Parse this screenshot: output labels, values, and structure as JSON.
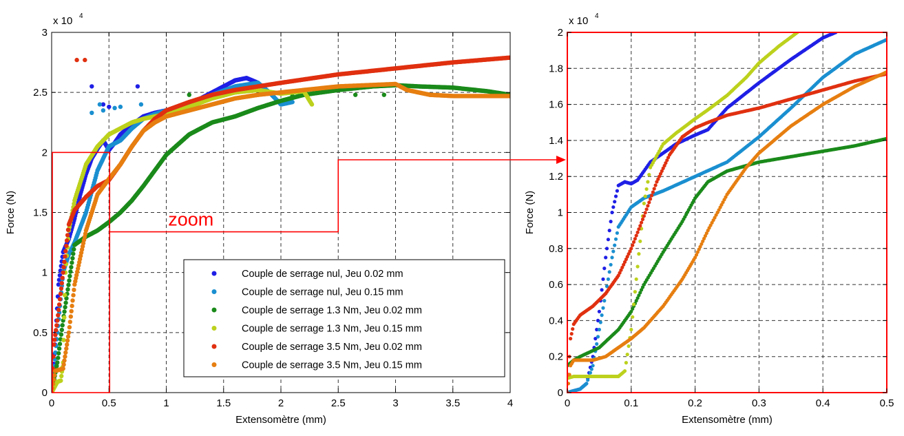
{
  "chart_data": [
    {
      "type": "scatter",
      "xlabel": "Extensomètre (mm)",
      "ylabel": "Force (N)",
      "y_multiplier": "x 10",
      "y_multiplier_exp": "4",
      "xlim": [
        0,
        4
      ],
      "ylim": [
        0,
        30000
      ],
      "xticks": [
        "0",
        "0.5",
        "1",
        "1.5",
        "2",
        "2.5",
        "3",
        "3.5",
        "4"
      ],
      "yticks": [
        "0",
        "0.5",
        "1",
        "1.5",
        "2",
        "2.5",
        "3"
      ],
      "grid": true,
      "legend_position": "bottom-right",
      "annotation": "zoom",
      "series": [
        {
          "name": "Couple de serrage nul, Jeu 0.02 mm",
          "color": "#1f1fe6",
          "x": [
            0,
            0.03,
            0.06,
            0.1,
            0.15,
            0.2,
            0.25,
            0.3,
            0.35,
            0.4,
            0.45,
            0.5,
            0.55,
            0.6,
            0.7,
            0.8,
            0.9,
            1.0,
            1.1,
            1.2,
            1.3,
            1.4,
            1.5,
            1.6,
            1.7,
            1.8
          ],
          "y": [
            0,
            4000,
            9000,
            11700,
            12800,
            14500,
            16500,
            18200,
            19500,
            20300,
            21000,
            20200,
            20800,
            21500,
            22300,
            23000,
            23300,
            23500,
            23700,
            24000,
            24500,
            25000,
            25500,
            26000,
            26200,
            25800
          ],
          "outliers_x": [
            0.35,
            0.45,
            0.5,
            0.75
          ],
          "outliers_y": [
            25500,
            24000,
            23800,
            25500
          ]
        },
        {
          "name": "Couple de serrage nul, Jeu 0.15 mm",
          "color": "#1a8fd0",
          "x": [
            0,
            0.05,
            0.1,
            0.15,
            0.2,
            0.3,
            0.4,
            0.5,
            0.6,
            0.7,
            0.8,
            0.9,
            1.0,
            1.2,
            1.4,
            1.6,
            1.8,
            1.9,
            2.0,
            2.1
          ],
          "y": [
            0,
            5000,
            10000,
            11500,
            12500,
            15000,
            18500,
            20500,
            21000,
            22000,
            22800,
            23200,
            23500,
            24000,
            24800,
            25500,
            25800,
            25000,
            24000,
            24200
          ],
          "outliers_x": [
            0.35,
            0.42,
            0.45,
            0.55,
            0.6,
            0.78
          ],
          "outliers_y": [
            23300,
            24000,
            23500,
            23700,
            23800,
            24000
          ]
        },
        {
          "name": "Couple de serrage 1.3 Nm, Jeu 0.02 mm",
          "color": "#1a8a1a",
          "x": [
            0,
            0.05,
            0.1,
            0.2,
            0.3,
            0.4,
            0.5,
            0.6,
            0.7,
            0.8,
            0.9,
            1.0,
            1.2,
            1.4,
            1.6,
            1.8,
            2.0,
            2.2,
            2.5,
            2.8,
            3.0,
            3.2,
            3.5,
            3.8,
            4.0
          ],
          "y": [
            0,
            2500,
            6000,
            12300,
            13000,
            13500,
            14200,
            15000,
            16000,
            17200,
            18500,
            19800,
            21500,
            22500,
            23000,
            23700,
            24300,
            24800,
            25200,
            25500,
            25600,
            25500,
            25400,
            25100,
            24800
          ],
          "outliers_x": [
            1.2,
            2.1,
            2.65,
            2.9
          ],
          "outliers_y": [
            24800,
            24700,
            24800,
            24800
          ]
        },
        {
          "name": "Couple de serrage 1.3 Nm, Jeu 0.15 mm",
          "color": "#bcd11c",
          "x": [
            0,
            0.05,
            0.08,
            0.1,
            0.12,
            0.15,
            0.2,
            0.3,
            0.4,
            0.5,
            0.6,
            0.7,
            0.8,
            0.9,
            1.0,
            1.2,
            1.4,
            1.6,
            1.8,
            2.0,
            2.2,
            2.27
          ],
          "y": [
            0,
            900,
            1000,
            2500,
            10000,
            13500,
            16000,
            19000,
            20500,
            21500,
            22000,
            22500,
            22800,
            23000,
            23200,
            23800,
            24500,
            25000,
            25200,
            24900,
            25100,
            24000
          ],
          "outliers_x": [],
          "outliers_y": []
        },
        {
          "name": "Couple de serrage 3.5 Nm, Jeu 0.02 mm",
          "color": "#e03010",
          "x": [
            0,
            0.02,
            0.05,
            0.1,
            0.15,
            0.2,
            0.3,
            0.4,
            0.5,
            0.6,
            0.7,
            0.8,
            0.9,
            1.0,
            1.2,
            1.4,
            1.6,
            1.8,
            2.0,
            2.5,
            3.0,
            3.5,
            4.0
          ],
          "y": [
            0,
            4000,
            6000,
            10000,
            14000,
            15200,
            16300,
            17200,
            17700,
            19000,
            20500,
            21800,
            22800,
            23500,
            24200,
            24800,
            25200,
            25500,
            25800,
            26500,
            27000,
            27500,
            27900
          ],
          "outliers_x": [
            0.22,
            0.29
          ],
          "outliers_y": [
            27700,
            27700
          ]
        },
        {
          "name": "Couple de serrage 3.5 Nm, Jeu 0.15 mm",
          "color": "#e67e10",
          "x": [
            0,
            0.03,
            0.1,
            0.15,
            0.2,
            0.3,
            0.4,
            0.5,
            0.6,
            0.7,
            0.8,
            0.9,
            1.0,
            1.2,
            1.4,
            1.6,
            1.8,
            2.0,
            2.5,
            3.0,
            3.1,
            3.3,
            3.5,
            4.0
          ],
          "y": [
            0,
            1800,
            2000,
            5000,
            9000,
            13500,
            16500,
            17800,
            19000,
            20500,
            21800,
            22500,
            23000,
            23500,
            24000,
            24500,
            24800,
            25000,
            25500,
            25700,
            25200,
            24800,
            24700,
            24700
          ],
          "outliers_x": [],
          "outliers_y": []
        }
      ]
    },
    {
      "type": "scatter",
      "xlabel": "Extensomètre (mm)",
      "ylabel": "Force (N)",
      "y_multiplier": "x 10",
      "y_multiplier_exp": "4",
      "xlim": [
        0,
        0.5
      ],
      "ylim": [
        0,
        20000
      ],
      "xticks": [
        "0",
        "0.1",
        "0.2",
        "0.3",
        "0.4",
        "0.5"
      ],
      "yticks": [
        "0",
        "0.2",
        "0.4",
        "0.6",
        "0.8",
        "1",
        "1.2",
        "1.4",
        "1.6",
        "1.8",
        "2"
      ],
      "grid": true,
      "series": [
        {
          "name": "Couple de serrage nul, Jeu 0.02 mm",
          "color": "#1f1fe6",
          "x": [
            0,
            0.02,
            0.03,
            0.04,
            0.05,
            0.06,
            0.07,
            0.08,
            0.09,
            0.1,
            0.11,
            0.12,
            0.13,
            0.15,
            0.17,
            0.2,
            0.22,
            0.25,
            0.3,
            0.35,
            0.4,
            0.42
          ],
          "y": [
            0,
            200,
            500,
            2000,
            4500,
            7500,
            10000,
            11500,
            11700,
            11600,
            11800,
            12300,
            12800,
            13300,
            13800,
            14300,
            14600,
            15800,
            17200,
            18500,
            19700,
            20000
          ]
        },
        {
          "name": "Couple de serrage nul, Jeu 0.15 mm",
          "color": "#1a8fd0",
          "x": [
            0,
            0.02,
            0.03,
            0.04,
            0.05,
            0.06,
            0.07,
            0.08,
            0.1,
            0.12,
            0.15,
            0.2,
            0.25,
            0.3,
            0.35,
            0.4,
            0.45,
            0.5
          ],
          "y": [
            0,
            200,
            500,
            1500,
            3500,
            5500,
            7500,
            9200,
            10300,
            10800,
            11200,
            12000,
            12800,
            14200,
            15800,
            17500,
            18800,
            19600
          ]
        },
        {
          "name": "Couple de serrage 1.3 Nm, Jeu 0.02 mm",
          "color": "#1a8a1a",
          "x": [
            0,
            0.01,
            0.02,
            0.05,
            0.08,
            0.1,
            0.12,
            0.15,
            0.18,
            0.2,
            0.22,
            0.25,
            0.3,
            0.35,
            0.4,
            0.45,
            0.5
          ],
          "y": [
            1500,
            1800,
            2000,
            2500,
            3500,
            4500,
            6000,
            7800,
            9500,
            10800,
            11700,
            12300,
            12800,
            13100,
            13400,
            13700,
            14100
          ]
        },
        {
          "name": "Couple de serrage 1.3 Nm, Jeu 0.15 mm",
          "color": "#bcd11c",
          "x": [
            0,
            0.01,
            0.02,
            0.05,
            0.08,
            0.09,
            0.1,
            0.11,
            0.12,
            0.13,
            0.15,
            0.17,
            0.2,
            0.22,
            0.25,
            0.28,
            0.3,
            0.33,
            0.36
          ],
          "y": [
            800,
            900,
            900,
            900,
            900,
            1200,
            3500,
            7000,
            10500,
            12500,
            13800,
            14400,
            15200,
            15700,
            16500,
            17500,
            18300,
            19200,
            20000
          ]
        },
        {
          "name": "Couple de serrage 3.5 Nm, Jeu 0.02 mm",
          "color": "#e03010",
          "x": [
            0,
            0.005,
            0.01,
            0.02,
            0.04,
            0.06,
            0.08,
            0.1,
            0.12,
            0.14,
            0.16,
            0.18,
            0.2,
            0.22,
            0.25,
            0.3,
            0.35,
            0.4,
            0.45,
            0.5
          ],
          "y": [
            0,
            3000,
            3800,
            4300,
            4800,
            5500,
            6500,
            8000,
            9800,
            11700,
            13200,
            14200,
            14700,
            15000,
            15400,
            15800,
            16300,
            16800,
            17300,
            17700
          ]
        },
        {
          "name": "Couple de serrage 3.5 Nm, Jeu 0.15 mm",
          "color": "#e67e10",
          "x": [
            0,
            0.005,
            0.01,
            0.02,
            0.04,
            0.06,
            0.08,
            0.1,
            0.12,
            0.15,
            0.18,
            0.2,
            0.22,
            0.25,
            0.28,
            0.3,
            0.35,
            0.4,
            0.45,
            0.5
          ],
          "y": [
            0,
            1500,
            1800,
            1800,
            1800,
            2000,
            2500,
            3000,
            3600,
            4800,
            6300,
            7500,
            9000,
            11000,
            12500,
            13300,
            14800,
            16000,
            17000,
            17800
          ]
        }
      ]
    }
  ]
}
